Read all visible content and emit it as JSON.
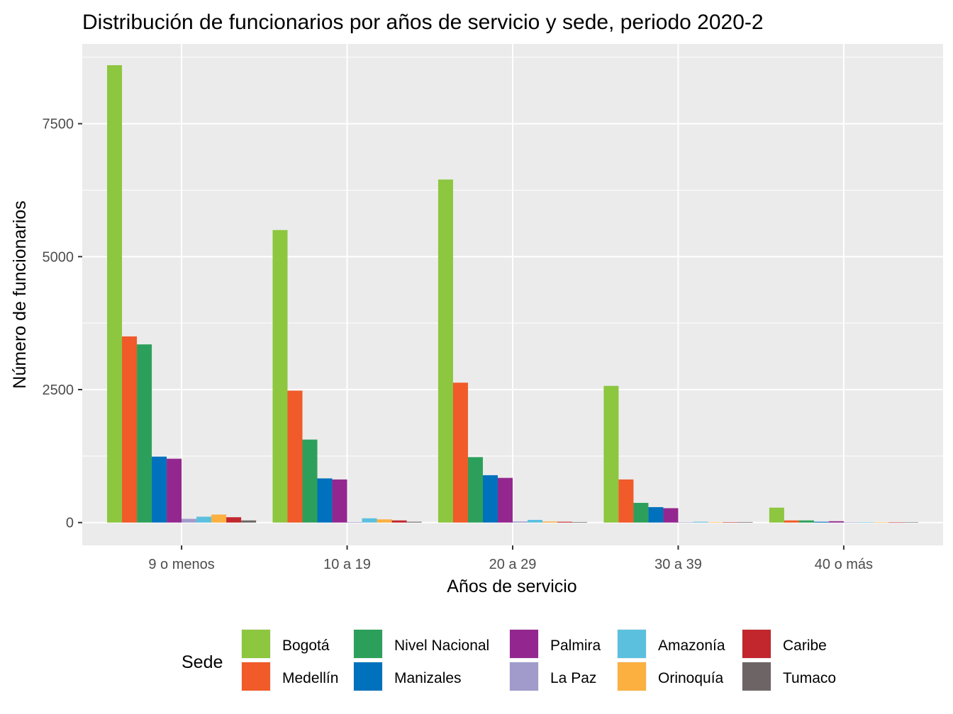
{
  "chart_data": {
    "type": "bar",
    "title": "Distribución de funcionarios por años de servicio y sede, periodo 2020-2",
    "xlabel": "Años de servicio",
    "ylabel": "Número de funcionarios",
    "categories": [
      "9 o menos",
      "10 a 19",
      "20 a 29",
      "30 a 39",
      "40 o más"
    ],
    "yticks": [
      0,
      2500,
      5000,
      7500
    ],
    "ylim": [
      -430,
      9000
    ],
    "grid": true,
    "legend_title": "Sede",
    "legend_position": "bottom",
    "series": [
      {
        "name": "Bogotá",
        "color": "#8DC63F",
        "values": [
          8600,
          5500,
          6450,
          2570,
          280
        ]
      },
      {
        "name": "Medellín",
        "color": "#F15A29",
        "values": [
          3500,
          2480,
          2630,
          810,
          40
        ]
      },
      {
        "name": "Nivel Nacional",
        "color": "#2CA05A",
        "values": [
          3350,
          1560,
          1230,
          370,
          40
        ]
      },
      {
        "name": "Manizales",
        "color": "#0071BC",
        "values": [
          1240,
          830,
          890,
          290,
          15
        ]
      },
      {
        "name": "Palmira",
        "color": "#93278F",
        "values": [
          1200,
          810,
          840,
          270,
          25
        ]
      },
      {
        "name": "La Paz",
        "color": "#A09BCB",
        "values": [
          70,
          10,
          20,
          5,
          5
        ]
      },
      {
        "name": "Amazonía",
        "color": "#5BC0DE",
        "values": [
          110,
          80,
          50,
          15,
          5
        ]
      },
      {
        "name": "Orinoquía",
        "color": "#FBB040",
        "values": [
          150,
          60,
          20,
          5,
          3
        ]
      },
      {
        "name": "Caribe",
        "color": "#C1272D",
        "values": [
          100,
          40,
          15,
          5,
          3
        ]
      },
      {
        "name": "Tumaco",
        "color": "#6D6565",
        "values": [
          40,
          15,
          10,
          10,
          5
        ]
      }
    ]
  }
}
